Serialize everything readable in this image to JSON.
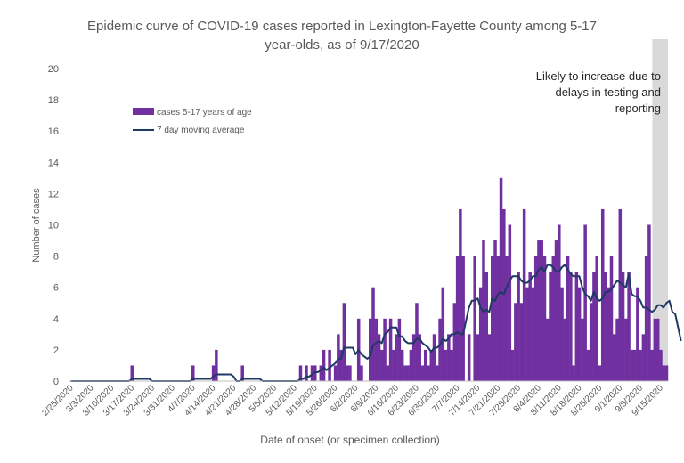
{
  "chart_data": {
    "type": "bar",
    "title": "Epidemic curve of COVID-19 cases reported in Lexington-Fayette County among 5-17 year-olds, as of 9/17/2020",
    "title_lines": [
      "Epidemic curve of COVID-19 cases reported in Lexington-Fayette County among 5-17",
      "year-olds, as of 9/17/2020"
    ],
    "xlabel": "Date of onset (or specimen collection)",
    "ylabel": "Number of cases",
    "ylim": [
      0,
      20
    ],
    "yticks": [
      0,
      2,
      4,
      6,
      8,
      10,
      12,
      14,
      16,
      18,
      20
    ],
    "grid": false,
    "legend_position": "upper-left",
    "start_date": "2/25/2020",
    "x_tick_labels": [
      "2/25/2020",
      "3/3/2020",
      "3/10/2020",
      "3/17/2020",
      "3/24/2020",
      "3/31/2020",
      "4/7/2020",
      "4/14/2020",
      "4/21/2020",
      "4/28/2020",
      "5/5/2020",
      "5/12/2020",
      "5/19/2020",
      "5/26/2020",
      "6/2/2020",
      "6/9/2020",
      "6/16/2020",
      "6/23/2020",
      "6/30/2020",
      "7/7/2020",
      "7/14/2020",
      "7/21/2020",
      "7/28/2020",
      "8/4/2020",
      "8/11/2020",
      "8/18/2020",
      "8/25/2020",
      "9/1/2020",
      "9/8/2020",
      "9/15/2020"
    ],
    "series": [
      {
        "name": "cases 5-17 years of age",
        "kind": "bar",
        "color": "#7030a0",
        "values": [
          0,
          0,
          0,
          0,
          0,
          0,
          0,
          0,
          0,
          0,
          0,
          0,
          0,
          0,
          0,
          0,
          0,
          0,
          0,
          0,
          0,
          1,
          0,
          0,
          0,
          0,
          0,
          0,
          0,
          0,
          0,
          0,
          0,
          0,
          0,
          0,
          0,
          0,
          0,
          0,
          0,
          0,
          1,
          0,
          0,
          0,
          0,
          0,
          0,
          1,
          2,
          0,
          0,
          0,
          0,
          0,
          0,
          0,
          0,
          1,
          0,
          0,
          0,
          0,
          0,
          0,
          0,
          0,
          0,
          0,
          0,
          0,
          0,
          0,
          0,
          0,
          0,
          0,
          0,
          1,
          0,
          1,
          0,
          1,
          1,
          0,
          1,
          2,
          0,
          2,
          0,
          1,
          3,
          2,
          5,
          1,
          1,
          0,
          0,
          4,
          1,
          0,
          0,
          4,
          6,
          4,
          3,
          2,
          4,
          1,
          4,
          2,
          3,
          4,
          2,
          1,
          1,
          2,
          3,
          5,
          3,
          1,
          2,
          1,
          2,
          3,
          1,
          4,
          6,
          2,
          3,
          2,
          5,
          8,
          11,
          8,
          0,
          3,
          0,
          8,
          3,
          6,
          9,
          7,
          3,
          8,
          9,
          8,
          13,
          11,
          8,
          10,
          2,
          5,
          7,
          5,
          11,
          6,
          7,
          6,
          8,
          9,
          9,
          8,
          4,
          7,
          8,
          9,
          10,
          6,
          4,
          8,
          7,
          1,
          7,
          6,
          4,
          10,
          2,
          5,
          7,
          8,
          1,
          11,
          7,
          6,
          8,
          3,
          4,
          11,
          7,
          4,
          7,
          2,
          2,
          6,
          2,
          3,
          8,
          10,
          2,
          4,
          4,
          2,
          1,
          1
        ]
      },
      {
        "name": "7 day moving average",
        "kind": "line",
        "color": "#1f3864",
        "values": [
          0,
          0,
          0,
          0,
          0,
          0,
          0,
          0,
          0,
          0,
          0,
          0,
          0,
          0,
          0,
          0,
          0,
          0,
          0,
          0,
          0,
          0.14,
          0.14,
          0.14,
          0.14,
          0.14,
          0.14,
          0.14,
          0,
          0,
          0,
          0,
          0,
          0,
          0,
          0,
          0,
          0,
          0,
          0,
          0,
          0,
          0.14,
          0.14,
          0.14,
          0.14,
          0.14,
          0.14,
          0.14,
          0.29,
          0.43,
          0.43,
          0.43,
          0.43,
          0.43,
          0.43,
          0.29,
          0,
          0,
          0.14,
          0.14,
          0.14,
          0.14,
          0.14,
          0.14,
          0.14,
          0,
          0,
          0,
          0,
          0,
          0,
          0,
          0,
          0,
          0,
          0,
          0,
          0,
          0.14,
          0.14,
          0.29,
          0.29,
          0.43,
          0.57,
          0.57,
          0.71,
          0.86,
          0.71,
          0.86,
          1.0,
          1.14,
          1.43,
          1.43,
          2.14,
          2.14,
          2.14,
          2.14,
          1.71,
          2.0,
          1.71,
          1.57,
          1.43,
          1.57,
          2.29,
          2.43,
          2.57,
          2.43,
          3.0,
          3.14,
          3.43,
          3.43,
          3.43,
          2.86,
          2.86,
          2.57,
          2.43,
          2.43,
          2.43,
          2.71,
          2.71,
          2.43,
          2.29,
          2.14,
          1.86,
          2.14,
          2.14,
          2.29,
          2.71,
          2.57,
          2.71,
          3.0,
          3.0,
          3.14,
          3.0,
          3.0,
          3.86,
          4.71,
          5.14,
          5.14,
          5.29,
          4.71,
          4.43,
          4.57,
          4.43,
          5.29,
          5.14,
          5.57,
          5.71,
          5.57,
          6.0,
          6.43,
          6.71,
          6.71,
          6.71,
          6.43,
          6.29,
          6.29,
          6.43,
          6.71,
          6.71,
          7.14,
          7.29,
          7.0,
          7.43,
          7.43,
          7.29,
          7.0,
          7.0,
          7.29,
          7.43,
          7.14,
          6.86,
          6.71,
          6.71,
          6.71,
          6.0,
          5.57,
          5.43,
          5.14,
          5.71,
          5.29,
          5.14,
          5.29,
          5.71,
          5.71,
          5.86,
          6.14,
          6.43,
          6.29,
          6.14,
          6.0,
          6.86,
          5.57,
          5.43,
          5.43,
          5.14,
          4.71,
          4.71,
          4.57,
          4.43,
          4.57,
          4.86,
          4.86,
          4.71,
          5.0,
          5.14,
          4.43,
          4.29,
          3.43,
          2.57
        ]
      }
    ],
    "shaded_region": {
      "label_lines": [
        "Likely to increase due to",
        "delays in testing and",
        "reporting"
      ],
      "color": "#d9d9d9",
      "start_day_index": 200
    }
  }
}
